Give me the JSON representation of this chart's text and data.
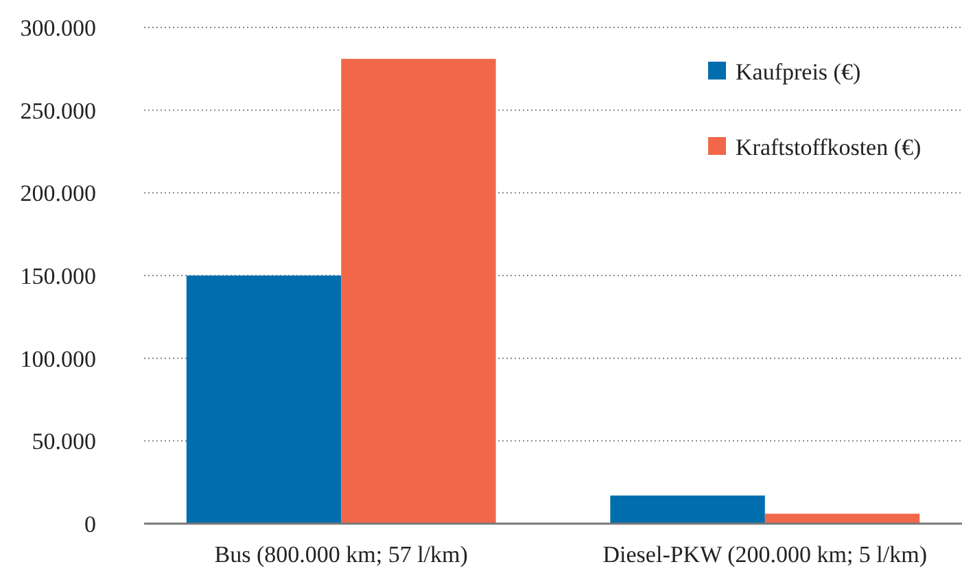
{
  "chart_data": {
    "type": "bar",
    "categories": [
      "Bus (800.000 km; 57 l/km)",
      "Diesel-PKW (200.000 km; 5 l/km)"
    ],
    "series": [
      {
        "name": "Kaufpreis (€)",
        "color": "#006eae",
        "values": [
          150000,
          17000
        ]
      },
      {
        "name": "Kraftstoffkosten (€)",
        "color": "#f1674a",
        "values": [
          281000,
          6000
        ]
      }
    ],
    "ylim": [
      0,
      300000
    ],
    "yticks": [
      {
        "value": 0,
        "label": "0"
      },
      {
        "value": 50000,
        "label": "50.000"
      },
      {
        "value": 100000,
        "label": "100.000"
      },
      {
        "value": 150000,
        "label": "150.000"
      },
      {
        "value": 200000,
        "label": "200.000"
      },
      {
        "value": 250000,
        "label": "250.000"
      },
      {
        "value": 300000,
        "label": "300.000"
      }
    ],
    "grid": "y",
    "legend": "top right"
  }
}
